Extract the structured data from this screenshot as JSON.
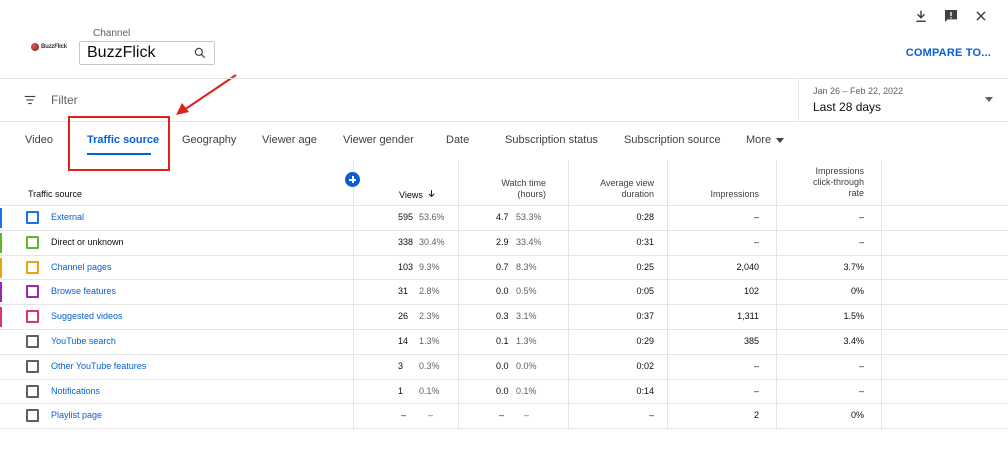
{
  "header": {
    "logo_text": "BuzzFlick",
    "channel_label": "Channel",
    "channel_name": "BuzzFlick",
    "compare_label": "COMPARE TO..."
  },
  "filter": {
    "label": "Filter"
  },
  "date": {
    "range": "Jan 26 – Feb 22, 2022",
    "label": "Last 28 days"
  },
  "tabs": [
    {
      "label": "Video"
    },
    {
      "label": "Traffic source"
    },
    {
      "label": "Geography"
    },
    {
      "label": "Viewer age"
    },
    {
      "label": "Viewer gender"
    },
    {
      "label": "Date"
    },
    {
      "label": "Subscription status"
    },
    {
      "label": "Subscription source"
    },
    {
      "label": "More"
    }
  ],
  "columns": {
    "source": "Traffic source",
    "views": "Views",
    "watch_time_1": "Watch time",
    "watch_time_2": "(hours)",
    "avg_1": "Average view",
    "avg_2": "duration",
    "impressions": "Impressions",
    "ctr_1": "Impressions",
    "ctr_2": "click-through",
    "ctr_3": "rate"
  },
  "rows": [
    {
      "source": "External",
      "color": "#1a73e8",
      "views": "595",
      "views_pct": "53.6%",
      "watch": "4.7",
      "watch_pct": "53.3%",
      "avg": "0:28",
      "impr": "–",
      "ctr": "–"
    },
    {
      "source": "Direct or unknown",
      "color": "#5cb82a",
      "views": "338",
      "views_pct": "30.4%",
      "watch": "2.9",
      "watch_pct": "33.4%",
      "avg": "0:31",
      "impr": "–",
      "ctr": "–"
    },
    {
      "source": "Channel pages",
      "color": "#e8a317",
      "views": "103",
      "views_pct": "9.3%",
      "watch": "0.7",
      "watch_pct": "8.3%",
      "avg": "0:25",
      "impr": "2,040",
      "ctr": "3.7%"
    },
    {
      "source": "Browse features",
      "color": "#9c27b0",
      "views": "31",
      "views_pct": "2.8%",
      "watch": "0.0",
      "watch_pct": "0.5%",
      "avg": "0:05",
      "impr": "102",
      "ctr": "0%"
    },
    {
      "source": "Suggested videos",
      "color": "#e0336b",
      "views": "26",
      "views_pct": "2.3%",
      "watch": "0.3",
      "watch_pct": "3.1%",
      "avg": "0:37",
      "impr": "1,311",
      "ctr": "1.5%"
    },
    {
      "source": "YouTube search",
      "color": "#606060",
      "views": "14",
      "views_pct": "1.3%",
      "watch": "0.1",
      "watch_pct": "1.3%",
      "avg": "0:29",
      "impr": "385",
      "ctr": "3.4%"
    },
    {
      "source": "Other YouTube features",
      "color": "#606060",
      "views": "3",
      "views_pct": "0.3%",
      "watch": "0.0",
      "watch_pct": "0.0%",
      "avg": "0:02",
      "impr": "–",
      "ctr": "–"
    },
    {
      "source": "Notifications",
      "color": "#606060",
      "views": "1",
      "views_pct": "0.1%",
      "watch": "0.0",
      "watch_pct": "0.1%",
      "avg": "0:14",
      "impr": "–",
      "ctr": "–"
    },
    {
      "source": "Playlist page",
      "color": "#606060",
      "views": "–",
      "views_pct": "–",
      "watch": "–",
      "watch_pct": "–",
      "avg": "–",
      "impr": "2",
      "ctr": "0%"
    }
  ],
  "colors": {
    "accent": "#065fd4",
    "highlight": "#e0201b"
  }
}
